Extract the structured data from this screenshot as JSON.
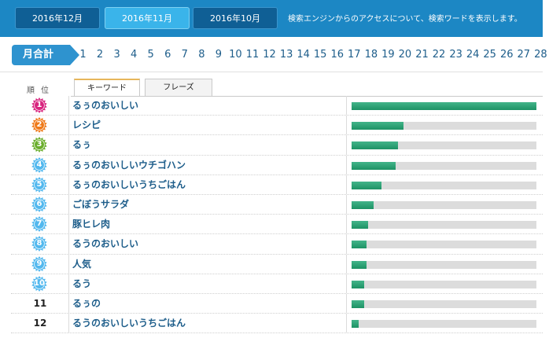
{
  "months": [
    {
      "label": "2016年12月",
      "active": false
    },
    {
      "label": "2016年11月",
      "active": true
    },
    {
      "label": "2016年10月",
      "active": false
    }
  ],
  "top_description": "検索エンジンからのアクセスについて、検索ワードを表示します。",
  "month_total_label": "月合計",
  "days": [
    "1",
    "2",
    "3",
    "4",
    "5",
    "6",
    "7",
    "8",
    "9",
    "10",
    "11",
    "12",
    "13",
    "14",
    "15",
    "16",
    "17",
    "18",
    "19",
    "20",
    "21",
    "22",
    "23",
    "24",
    "25",
    "26",
    "27",
    "28"
  ],
  "rank_header": "順位",
  "tabs": [
    {
      "label": "キーワード",
      "active": true
    },
    {
      "label": "フレーズ",
      "active": false
    }
  ],
  "colors": {
    "rank1": "#d8257f",
    "rank2": "#ef7a1a",
    "rank3": "#6aae2c",
    "rank_other": "#52b8ee"
  },
  "rows": [
    {
      "rank": "1",
      "keyword": "るぅのおいしい",
      "share": 1.0
    },
    {
      "rank": "2",
      "keyword": "レシピ",
      "share": 0.28
    },
    {
      "rank": "3",
      "keyword": "るぅ",
      "share": 0.25
    },
    {
      "rank": "4",
      "keyword": "るぅのおいしいウチゴハン",
      "share": 0.24
    },
    {
      "rank": "5",
      "keyword": "るぅのおいしいうちごはん",
      "share": 0.16
    },
    {
      "rank": "6",
      "keyword": "ごぼうサラダ",
      "share": 0.12
    },
    {
      "rank": "7",
      "keyword": "豚ヒレ肉",
      "share": 0.09
    },
    {
      "rank": "8",
      "keyword": "るうのおいしい",
      "share": 0.08
    },
    {
      "rank": "9",
      "keyword": "人気",
      "share": 0.08
    },
    {
      "rank": "10",
      "keyword": "るう",
      "share": 0.07
    },
    {
      "rank": "11",
      "keyword": "るぅの",
      "share": 0.07
    },
    {
      "rank": "12",
      "keyword": "るうのおいしいうちごはん",
      "share": 0.04
    }
  ]
}
